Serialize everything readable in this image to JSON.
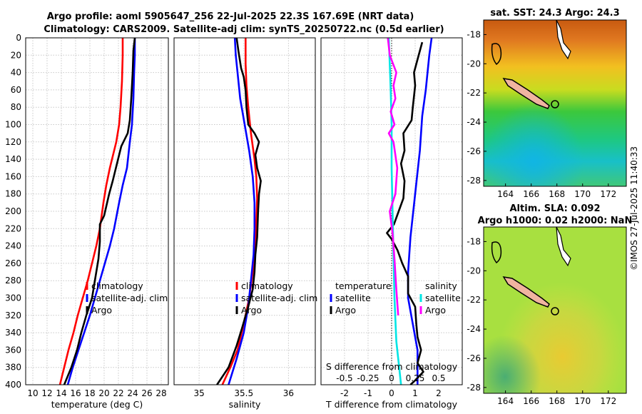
{
  "titles": {
    "line1": "Argo profile: aoml 5905647_256 22-Jul-2025 22.3S 167.69E (NRT data)",
    "line2": "Climatology: CARS2009. Satellite-adj clim: synTS_20250722.nc (0.5d earlier)",
    "sst": "sat. SST: 24.3 Argo: 24.3",
    "sla1": "Altim. SLA: 0.092",
    "sla2": "Argo h1000: 0.02 h2000: NaN"
  },
  "credit": "©IMOS 27-Jul-2025 11:40:33",
  "colors": {
    "clim": "#ff0000",
    "sat": "#0000ff",
    "argo": "#000000",
    "sat_s": "#00e5e5",
    "argo_s": "#ff00ff"
  },
  "chart_data": [
    {
      "type": "line",
      "name": "temperature",
      "xlabel": "temperature (deg C)",
      "xlim": [
        9,
        29
      ],
      "xticks": [
        10,
        12,
        14,
        16,
        18,
        20,
        22,
        24,
        26,
        28
      ],
      "ylim": [
        0,
        400
      ],
      "yticks": [
        0,
        20,
        40,
        60,
        80,
        100,
        120,
        140,
        160,
        180,
        200,
        220,
        240,
        260,
        280,
        300,
        320,
        340,
        360,
        380,
        400
      ],
      "legend": [
        "climatology",
        "satellite-adj. clim",
        "Argo"
      ],
      "series": [
        {
          "name": "climatology",
          "color": "clim",
          "points": [
            [
              22.6,
              0
            ],
            [
              22.6,
              20
            ],
            [
              22.5,
              50
            ],
            [
              22.3,
              80
            ],
            [
              22.1,
              100
            ],
            [
              21.7,
              120
            ],
            [
              20.8,
              150
            ],
            [
              20.3,
              170
            ],
            [
              19.9,
              190
            ],
            [
              19.4,
              220
            ],
            [
              18.9,
              240
            ],
            [
              18.3,
              260
            ],
            [
              17.7,
              280
            ],
            [
              17.0,
              300
            ],
            [
              16.3,
              320
            ],
            [
              15.7,
              340
            ],
            [
              15.0,
              360
            ],
            [
              14.4,
              380
            ],
            [
              13.8,
              400
            ]
          ]
        },
        {
          "name": "satellite-adj. clim",
          "color": "sat",
          "points": [
            [
              24.3,
              0
            ],
            [
              24.3,
              20
            ],
            [
              24.2,
              40
            ],
            [
              24.1,
              70
            ],
            [
              23.9,
              100
            ],
            [
              23.6,
              120
            ],
            [
              23.2,
              150
            ],
            [
              22.6,
              170
            ],
            [
              22.1,
              190
            ],
            [
              21.4,
              220
            ],
            [
              20.8,
              240
            ],
            [
              20.1,
              260
            ],
            [
              19.4,
              280
            ],
            [
              18.7,
              300
            ],
            [
              18.0,
              320
            ],
            [
              17.2,
              340
            ],
            [
              16.4,
              360
            ],
            [
              15.6,
              380
            ],
            [
              14.9,
              400
            ]
          ]
        },
        {
          "name": "Argo",
          "color": "argo",
          "points": [
            [
              24.3,
              0
            ],
            [
              24.1,
              15
            ],
            [
              24.0,
              40
            ],
            [
              23.8,
              70
            ],
            [
              23.6,
              95
            ],
            [
              23.3,
              110
            ],
            [
              22.4,
              125
            ],
            [
              21.8,
              145
            ],
            [
              21.2,
              165
            ],
            [
              20.7,
              180
            ],
            [
              20.0,
              205
            ],
            [
              19.4,
              215
            ],
            [
              19.4,
              235
            ],
            [
              19.2,
              255
            ],
            [
              18.8,
              275
            ],
            [
              18.3,
              300
            ],
            [
              17.5,
              320
            ],
            [
              16.8,
              340
            ],
            [
              16.2,
              360
            ],
            [
              15.4,
              380
            ],
            [
              14.4,
              400
            ]
          ]
        }
      ]
    },
    {
      "type": "line",
      "name": "salinity",
      "xlabel": "salinity",
      "xlim": [
        34.72,
        36.3
      ],
      "xticks": [
        35,
        35.5,
        36
      ],
      "ylim": [
        0,
        400
      ],
      "legend": [
        "climatology",
        "satellite-adj. clim",
        "Argo"
      ],
      "series": [
        {
          "name": "climatology",
          "color": "clim",
          "points": [
            [
              35.52,
              0
            ],
            [
              35.52,
              30
            ],
            [
              35.53,
              55
            ],
            [
              35.55,
              80
            ],
            [
              35.58,
              110
            ],
            [
              35.62,
              140
            ],
            [
              35.64,
              160
            ],
            [
              35.65,
              185
            ],
            [
              35.64,
              210
            ],
            [
              35.63,
              240
            ],
            [
              35.6,
              270
            ],
            [
              35.56,
              300
            ],
            [
              35.5,
              330
            ],
            [
              35.43,
              360
            ],
            [
              35.35,
              380
            ],
            [
              35.26,
              400
            ]
          ]
        },
        {
          "name": "satellite-adj. clim",
          "color": "sat",
          "points": [
            [
              35.4,
              0
            ],
            [
              35.41,
              20
            ],
            [
              35.43,
              40
            ],
            [
              35.46,
              70
            ],
            [
              35.51,
              100
            ],
            [
              35.56,
              130
            ],
            [
              35.6,
              160
            ],
            [
              35.62,
              190
            ],
            [
              35.62,
              220
            ],
            [
              35.61,
              250
            ],
            [
              35.58,
              280
            ],
            [
              35.55,
              310
            ],
            [
              35.5,
              340
            ],
            [
              35.42,
              370
            ],
            [
              35.33,
              400
            ]
          ]
        },
        {
          "name": "Argo",
          "color": "argo",
          "points": [
            [
              35.42,
              0
            ],
            [
              35.44,
              15
            ],
            [
              35.47,
              35
            ],
            [
              35.5,
              45
            ],
            [
              35.52,
              60
            ],
            [
              35.53,
              80
            ],
            [
              35.55,
              100
            ],
            [
              35.62,
              110
            ],
            [
              35.67,
              120
            ],
            [
              35.63,
              135
            ],
            [
              35.65,
              150
            ],
            [
              35.69,
              165
            ],
            [
              35.67,
              180
            ],
            [
              35.66,
              200
            ],
            [
              35.65,
              230
            ],
            [
              35.63,
              250
            ],
            [
              35.62,
              270
            ],
            [
              35.6,
              290
            ],
            [
              35.55,
              310
            ],
            [
              35.48,
              335
            ],
            [
              35.42,
              355
            ],
            [
              35.33,
              380
            ],
            [
              35.2,
              400
            ]
          ]
        }
      ]
    },
    {
      "type": "line",
      "name": "differences",
      "xlabel": "T difference from climatology",
      "xlabel2": "S difference from climatology",
      "xlim": [
        -3,
        3
      ],
      "xticks": [
        -2,
        -1,
        0,
        1,
        2
      ],
      "s_xlim": [
        -0.75,
        0.75
      ],
      "s_xticks_labels": [
        "-0.5",
        "-0.25",
        "0",
        "0.25",
        "0.5"
      ],
      "ylim": [
        0,
        400
      ],
      "legend": {
        "temperature": "temperature",
        "salinity": "salinity",
        "satellite": "satellite",
        "argo": "Argo"
      },
      "series": [
        {
          "name": "T satellite",
          "color": "sat",
          "points": [
            [
              1.7,
              0
            ],
            [
              1.6,
              20
            ],
            [
              1.45,
              60
            ],
            [
              1.3,
              90
            ],
            [
              1.2,
              130
            ],
            [
              1.0,
              180
            ],
            [
              0.8,
              230
            ],
            [
              0.7,
              270
            ],
            [
              0.7,
              300
            ],
            [
              0.9,
              330
            ],
            [
              1.1,
              360
            ],
            [
              1.1,
              400
            ]
          ]
        },
        {
          "name": "T Argo",
          "color": "argo",
          "points": [
            [
              1.3,
              5
            ],
            [
              1.1,
              25
            ],
            [
              0.95,
              40
            ],
            [
              1.0,
              55
            ],
            [
              0.9,
              80
            ],
            [
              0.85,
              95
            ],
            [
              0.5,
              110
            ],
            [
              0.55,
              130
            ],
            [
              0.4,
              145
            ],
            [
              0.55,
              165
            ],
            [
              0.5,
              185
            ],
            [
              0.3,
              200
            ],
            [
              0.1,
              215
            ],
            [
              -0.2,
              225
            ],
            [
              0,
              232
            ],
            [
              0.25,
              245
            ],
            [
              0.45,
              260
            ],
            [
              0.7,
              275
            ],
            [
              0.7,
              295
            ],
            [
              1.0,
              310
            ],
            [
              1.05,
              330
            ],
            [
              1.1,
              345
            ],
            [
              1.25,
              360
            ],
            [
              1.1,
              375
            ],
            [
              1.35,
              385
            ],
            [
              1.0,
              395
            ],
            [
              0.8,
              400
            ]
          ]
        },
        {
          "name": "S satellite",
          "color": "sat_s",
          "points": [
            [
              -0.03,
              0
            ],
            [
              -0.02,
              30
            ],
            [
              -0.01,
              60
            ],
            [
              0.0,
              100
            ],
            [
              0.0,
              150
            ],
            [
              0.01,
              200
            ],
            [
              0.02,
              250
            ],
            [
              0.03,
              300
            ],
            [
              0.05,
              350
            ],
            [
              0.08,
              380
            ],
            [
              0.1,
              400
            ]
          ]
        },
        {
          "name": "S Argo",
          "color": "argo_s",
          "points": [
            [
              -0.04,
              0
            ],
            [
              -0.02,
              20
            ],
            [
              0.05,
              40
            ],
            [
              0.02,
              55
            ],
            [
              0.04,
              70
            ],
            [
              -0.01,
              85
            ],
            [
              0.03,
              100
            ],
            [
              -0.03,
              110
            ],
            [
              0.02,
              120
            ],
            [
              0.06,
              150
            ],
            [
              0.04,
              180
            ],
            [
              -0.02,
              200
            ],
            [
              0.01,
              225
            ],
            [
              0.03,
              255
            ],
            [
              0.05,
              290
            ],
            [
              0.07,
              320
            ]
          ]
        }
      ]
    },
    {
      "type": "heatmap",
      "name": "sst-map",
      "xticks": [
        164,
        166,
        168,
        170,
        172
      ],
      "yticks": [
        -18,
        -20,
        -22,
        -24,
        -26,
        -28
      ],
      "xlim": [
        162.3,
        173.4
      ],
      "ylim": [
        -28.4,
        -17
      ]
    },
    {
      "type": "heatmap",
      "name": "sla-map",
      "xticks": [
        164,
        166,
        168,
        170,
        172
      ],
      "yticks": [
        -18,
        -20,
        -22,
        -24,
        -26,
        -28
      ],
      "xlim": [
        162.3,
        173.4
      ],
      "ylim": [
        -28.4,
        -17
      ]
    }
  ]
}
